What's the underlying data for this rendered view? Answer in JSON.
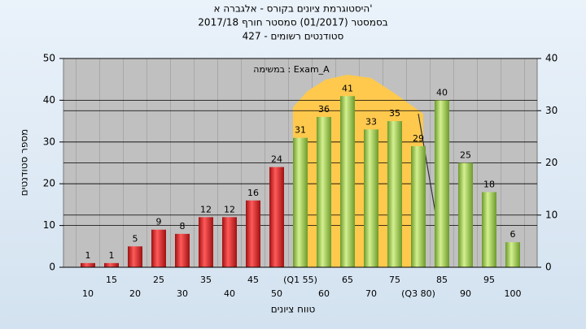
{
  "chart_data": {
    "type": "bar",
    "title_lines": [
      "היסטוגרמת ציונים בקורס - אלגברה א'",
      "בסמסטר  (01/2017)  סמסטר חורף 2017/18",
      "סטודנטים רשומים - 427"
    ],
    "annotation": "במשימה : Exam_A",
    "y_label": "מספר סטודנטים",
    "x_label": "טווח ציונים",
    "categories": [
      "10",
      "15",
      "20",
      "25",
      "30",
      "35",
      "40",
      "45",
      "50",
      "(Q1 55)",
      "60",
      "65",
      "70",
      "75",
      "(Q3 80)",
      "85",
      "90",
      "95",
      "100"
    ],
    "values": [
      1,
      1,
      5,
      9,
      8,
      12,
      12,
      16,
      24,
      31,
      36,
      41,
      33,
      35,
      29,
      40,
      25,
      18,
      6
    ],
    "colors": [
      "red",
      "red",
      "red",
      "red",
      "red",
      "red",
      "red",
      "red",
      "red",
      "green",
      "green",
      "green",
      "green",
      "green",
      "green",
      "green",
      "green",
      "green",
      "green"
    ],
    "ylim": [
      0,
      50
    ],
    "yticks": [
      0,
      10,
      20,
      30,
      40,
      50
    ],
    "y2lim": [
      0,
      40
    ],
    "y2ticks": [
      0,
      10,
      20,
      30,
      40
    ],
    "grid": true
  }
}
